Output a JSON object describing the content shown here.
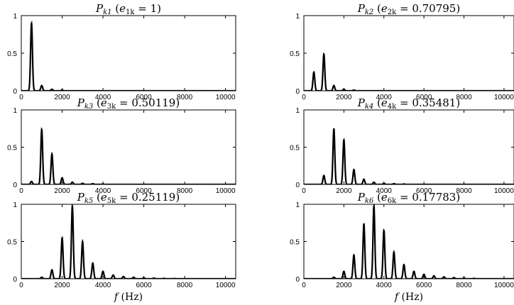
{
  "figure": {
    "xlabel": "f (Hz)"
  },
  "chart_data": [
    {
      "type": "line",
      "title": "P_k1 (e_1k = 1)",
      "title_parts": {
        "p_sub": "k1",
        "e_sub": "1k",
        "value": "1"
      },
      "xlabel": "",
      "ylabel": "",
      "xlim": [
        0,
        10500
      ],
      "ylim": [
        0,
        1
      ],
      "xticks": [
        0,
        2000,
        4000,
        6000,
        8000,
        10000
      ],
      "yticks": [
        0,
        0.5,
        1
      ],
      "peaks": {
        "x": [
          500,
          1000,
          1500,
          2000
        ],
        "y": [
          0.9,
          0.07,
          0.02,
          0.01
        ]
      }
    },
    {
      "type": "line",
      "title": "P_k2 (e_2k = 0.70795)",
      "title_parts": {
        "p_sub": "k2",
        "e_sub": "2k",
        "value": "0.70795"
      },
      "xlabel": "",
      "ylabel": "",
      "xlim": [
        0,
        10500
      ],
      "ylim": [
        0,
        1
      ],
      "xticks": [
        0,
        2000,
        4000,
        6000,
        8000,
        10000
      ],
      "yticks": [
        0,
        0.5,
        1
      ],
      "peaks": {
        "x": [
          500,
          1000,
          1500,
          2000,
          2500
        ],
        "y": [
          0.25,
          0.49,
          0.07,
          0.02,
          0.01
        ]
      }
    },
    {
      "type": "line",
      "title": "P_k3 (e_3k = 0.50119)",
      "title_parts": {
        "p_sub": "k3",
        "e_sub": "3k",
        "value": "0.50119"
      },
      "xlabel": "",
      "ylabel": "",
      "xlim": [
        0,
        10500
      ],
      "ylim": [
        0,
        1
      ],
      "xticks": [
        0,
        2000,
        4000,
        6000,
        8000,
        10000
      ],
      "yticks": [
        0,
        0.5,
        1
      ],
      "peaks": {
        "x": [
          500,
          1000,
          1500,
          2000,
          2500,
          3000,
          3500,
          4000
        ],
        "y": [
          0.04,
          0.74,
          0.41,
          0.09,
          0.03,
          0.015,
          0.01,
          0.005
        ]
      }
    },
    {
      "type": "line",
      "title": "P_k4 (e_4k = 0.35481)",
      "title_parts": {
        "p_sub": "k4",
        "e_sub": "4k",
        "value": "0.35481"
      },
      "xlabel": "",
      "ylabel": "",
      "xlim": [
        0,
        10500
      ],
      "ylim": [
        0,
        1
      ],
      "xticks": [
        0,
        2000,
        4000,
        6000,
        8000,
        10000
      ],
      "yticks": [
        0,
        0.5,
        1
      ],
      "peaks": {
        "x": [
          1000,
          1500,
          2000,
          2500,
          3000,
          3500,
          4000,
          4500,
          5000
        ],
        "y": [
          0.12,
          0.75,
          0.6,
          0.2,
          0.07,
          0.03,
          0.015,
          0.01,
          0.005
        ]
      }
    },
    {
      "type": "line",
      "title": "P_k5 (e_5k = 0.25119)",
      "title_parts": {
        "p_sub": "k5",
        "e_sub": "5k",
        "value": "0.25119"
      },
      "xlabel": "f (Hz)",
      "ylabel": "",
      "xlim": [
        0,
        10500
      ],
      "ylim": [
        0,
        1
      ],
      "xticks": [
        0,
        2000,
        4000,
        6000,
        8000,
        10000
      ],
      "yticks": [
        0,
        0.5,
        1
      ],
      "peaks": {
        "x": [
          1000,
          1500,
          2000,
          2500,
          3000,
          3500,
          4000,
          4500,
          5000,
          5500,
          6000,
          6500,
          7000,
          7500
        ],
        "y": [
          0.02,
          0.12,
          0.55,
          0.98,
          0.5,
          0.21,
          0.1,
          0.05,
          0.03,
          0.02,
          0.012,
          0.008,
          0.005,
          0.003
        ]
      }
    },
    {
      "type": "line",
      "title": "P_k6 (e_6k = 0.17783)",
      "title_parts": {
        "p_sub": "k6",
        "e_sub": "6k",
        "value": "0.17783"
      },
      "xlabel": "f (Hz)",
      "ylabel": "",
      "xlim": [
        0,
        10500
      ],
      "ylim": [
        0,
        1
      ],
      "xticks": [
        0,
        2000,
        4000,
        6000,
        8000,
        10000
      ],
      "yticks": [
        0,
        0.5,
        1
      ],
      "peaks": {
        "x": [
          1500,
          2000,
          2500,
          3000,
          3500,
          4000,
          4500,
          5000,
          5500,
          6000,
          6500,
          7000,
          7500,
          8000,
          8500
        ],
        "y": [
          0.02,
          0.1,
          0.32,
          0.74,
          0.98,
          0.65,
          0.36,
          0.19,
          0.1,
          0.06,
          0.04,
          0.025,
          0.015,
          0.01,
          0.005
        ]
      }
    }
  ]
}
